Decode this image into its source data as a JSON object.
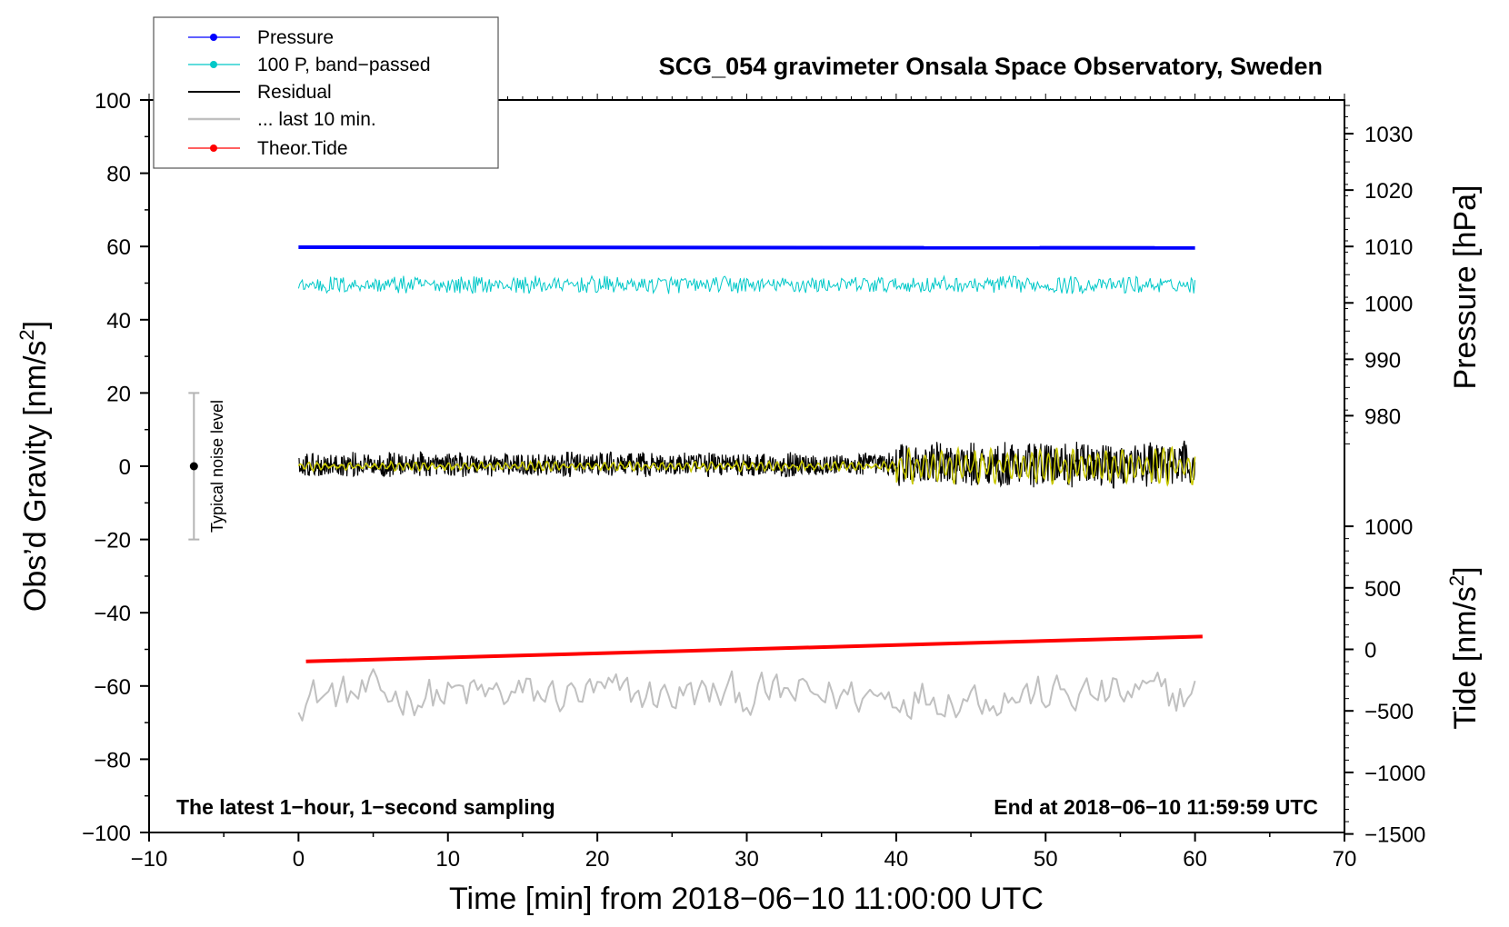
{
  "chart_data": {
    "type": "line",
    "title": "SCG_054 gravimeter Onsala Space Observatory, Sweden",
    "xlabel": "Time [min] from 2018−06−10 11:00:00 UTC",
    "ylabel": "Obs’d Gravity [nm/s",
    "ylabel_sup": "2",
    "ylabel_end": "]",
    "xlim": [
      -10,
      70
    ],
    "ylim": [
      -100,
      100
    ],
    "x_ticks": [
      -10,
      0,
      10,
      20,
      30,
      40,
      50,
      60,
      70
    ],
    "x_tick_labels": [
      "−10",
      "0",
      "10",
      "20",
      "30",
      "40",
      "50",
      "60",
      "70"
    ],
    "y_ticks": [
      -100,
      -80,
      -60,
      -40,
      -20,
      0,
      20,
      40,
      60,
      80,
      100
    ],
    "y_tick_labels": [
      "−100",
      "−80",
      "−60",
      "−40",
      "−20",
      "0",
      "20",
      "40",
      "60",
      "80",
      "100"
    ],
    "pressure_axis": {
      "label": "Pressure [hPa]",
      "ticks": [
        980,
        990,
        1000,
        1010,
        1020,
        1030
      ],
      "tick_labels": [
        "980",
        "990",
        "1000",
        "1010",
        "1020",
        "1030"
      ],
      "at_1010": 60,
      "per_10hPa": 15.4
    },
    "tide_axis": {
      "label": "Tide [nm/s",
      "label_sup": "2",
      "label_end": "]",
      "ticks": [
        -1500,
        -1000,
        -500,
        0,
        500,
        1000
      ],
      "tick_labels": [
        "−1500",
        "−1000",
        "−500",
        "0",
        "500",
        "1000"
      ],
      "at_zero": -50,
      "per_500": 16.8
    },
    "series": [
      {
        "name": "Pressure",
        "color": "#0000ff",
        "y_start": 59.8,
        "y_end": 59.6,
        "x_range": [
          0,
          60
        ]
      },
      {
        "name": "100 P, band−passed",
        "color": "#00c8c8",
        "center": 49.5,
        "noise_amplitude": 2.5,
        "x_range": [
          0,
          60
        ]
      },
      {
        "name": "Residual",
        "color": "#000000",
        "center": 0.5,
        "noise_amplitude_early": 3.5,
        "noise_amplitude_late": 6.5,
        "x_range": [
          0,
          60
        ]
      },
      {
        "name": "... last 10 min.",
        "color": "#c0c0c0",
        "center": -62.5,
        "noise_amplitude": 5.5,
        "x_range": [
          0,
          60
        ]
      },
      {
        "name": "Theor.Tide",
        "color": "#ff0000",
        "y_start": -53.3,
        "y_end": -46.5,
        "x_range": [
          0.5,
          60.5
        ]
      },
      {
        "name": "band−passed residual",
        "color": "#c8c800",
        "center": 0,
        "noise_amplitude_early": 1,
        "noise_amplitude_late": 4,
        "x_range": [
          0,
          60
        ],
        "in_legend": false
      }
    ],
    "noise_bar": {
      "x": -7,
      "y": 0,
      "low": -20,
      "high": 20,
      "label": "Typical noise level"
    },
    "annotations": {
      "left": "The latest 1−hour, 1−second sampling",
      "right": "End at 2018−06−10 11:59:59 UTC"
    },
    "legend_position": "top-left"
  }
}
